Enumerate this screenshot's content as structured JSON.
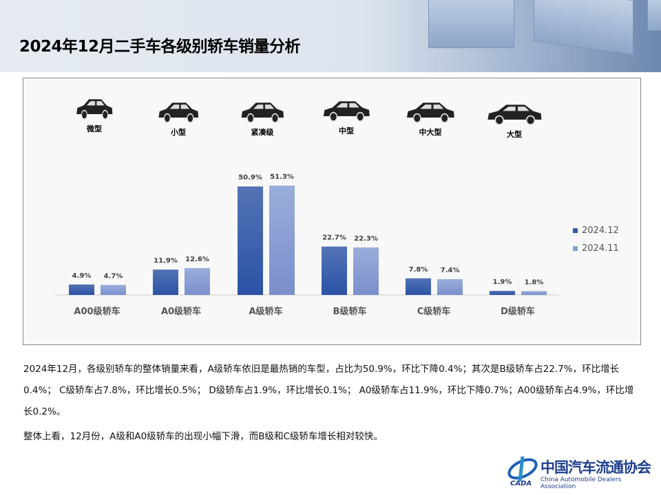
{
  "title": "2024年12月二手车各级别轿车销量分析",
  "car_types": [
    {
      "label": "微型",
      "icon": "microcar-icon"
    },
    {
      "label": "小型",
      "icon": "hatchback-icon"
    },
    {
      "label": "紧凑级",
      "icon": "compact-sedan-icon"
    },
    {
      "label": "中型",
      "icon": "midsize-sedan-icon"
    },
    {
      "label": "中大型",
      "icon": "large-sedan-icon"
    },
    {
      "label": "大型",
      "icon": "fullsize-sedan-icon"
    }
  ],
  "chart_data": {
    "type": "bar",
    "categories": [
      "A00级轿车",
      "A0级轿车",
      "A级轿车",
      "B级轿车",
      "C级轿车",
      "D级轿车"
    ],
    "series": [
      {
        "name": "2024.12",
        "color": "#3558a8",
        "values": [
          4.9,
          11.9,
          50.9,
          22.7,
          7.8,
          1.9
        ],
        "labels": [
          "4.9%",
          "11.9%",
          "50.9%",
          "22.7%",
          "7.8%",
          "1.9%"
        ]
      },
      {
        "name": "2024.11",
        "color": "#8a9fd4",
        "values": [
          4.7,
          12.6,
          51.3,
          22.3,
          7.4,
          1.8
        ],
        "labels": [
          "4.7%",
          "12.6%",
          "51.3%",
          "22.3%",
          "7.4%",
          "1.8%"
        ]
      }
    ],
    "unit": "%",
    "legend": "right",
    "grid": false
  },
  "paragraphs": [
    "2024年12月，各级别轿车的整体销量来看，A级轿车依旧是最热销的车型，占比为50.9%，环比下降0.4%；其次是B级轿车占22.7%，环比增长0.4%； C级轿车占7.8%，环比增长0.5%； D级轿车占1.9%，环比增长0.1%； A0级轿车占11.9%，环比下降0.7%；A00级轿车占4.9%，环比增长0.2%。",
    "整体上看，12月份，A级和A0级轿车的出现小幅下滑，而B级和C级轿车增长相对较快。"
  ],
  "logo": {
    "cn": "中国汽车流通协会",
    "en": "China Automobile Dealers Association",
    "abbr": "CADA"
  }
}
